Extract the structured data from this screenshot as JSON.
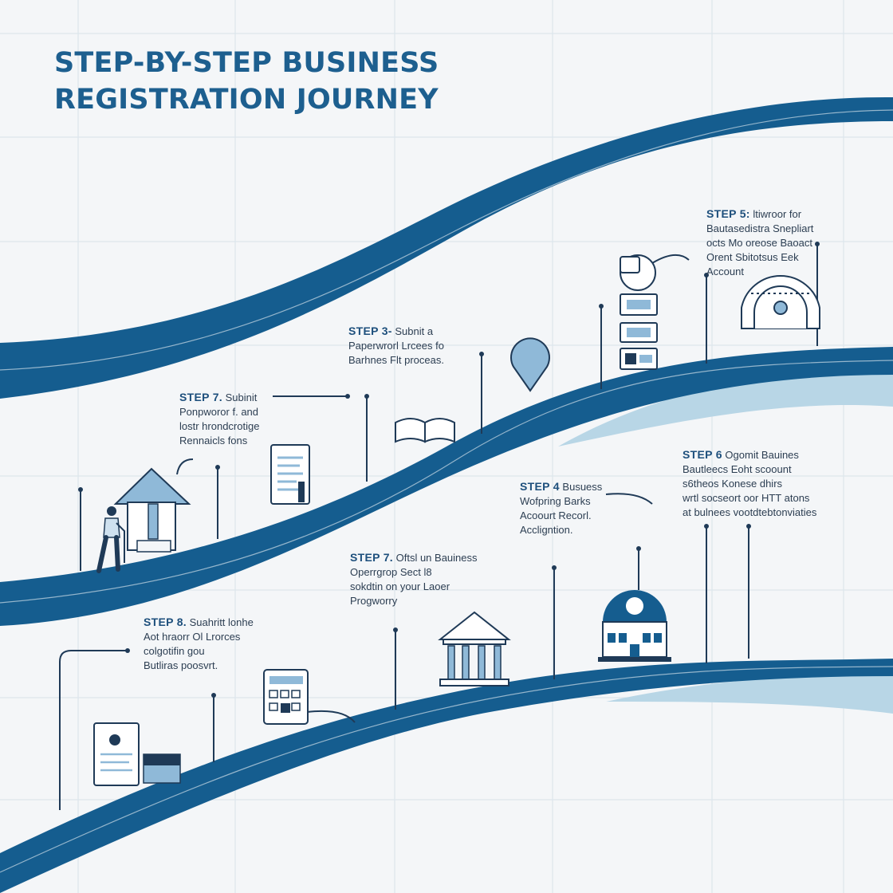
{
  "title": "STEP-BY-STEP BUSINESS REGISTRATION JOURNEY",
  "colors": {
    "road": "#155d8f",
    "road_shadow": "#b8d6e6",
    "accent": "#1d5f8f",
    "icon_fill": "#8fb9d8",
    "grid": "#dbe3ea"
  },
  "steps": [
    {
      "label": "STEP 5:",
      "line1": "ltiwroor for",
      "lines": [
        "Bautasedistra Snepliart",
        "octs Mo oreose Baoact",
        "Orent Sbitotsus Eek",
        "Account"
      ]
    },
    {
      "label": "STEP 3-",
      "line1": "Subnit a",
      "lines": [
        "Paperwrorl Lrcees fo",
        "Barhnes Flt proceas."
      ]
    },
    {
      "label": "STEP 7.",
      "line1": "Subinit",
      "lines": [
        "Ponpworor f. and",
        "lostr hrondcrotige",
        "Rennaicls fons"
      ]
    },
    {
      "label": "STEP 6",
      "line1": "Ogomit Bauines",
      "lines": [
        "Bautleecs Eoht scoount",
        "s6theos Konese dhirs",
        "wrtl socseort oor HTT atons",
        "at bulnees vootdtebtonviaties"
      ]
    },
    {
      "label": "STEP 4",
      "line1": "Busuess",
      "lines": [
        "Wofpring Barks",
        "Acoourt Recorl.",
        "Accligntion."
      ]
    },
    {
      "label": "STEP 7.",
      "line1": "Oftsl un Bauiness",
      "lines": [
        "Operrgrop Sect l8",
        "sokdtin on your Laoer",
        "Progworry"
      ]
    },
    {
      "label": "STEP 8.",
      "line1": "Suahritt lonhe",
      "lines": [
        "Aot hraorr Ol Lrorces",
        "colgotifin gou",
        "Butliras poosvrt."
      ]
    }
  ],
  "icons": [
    "house-icon",
    "person-icon",
    "document-icon",
    "open-book-icon",
    "location-pin-icon",
    "globe-icon",
    "id-card-icon",
    "arch-gate-icon",
    "bank-building-icon",
    "bank-dollar-icon",
    "calculator-icon",
    "certificate-icon",
    "folder-icon"
  ]
}
